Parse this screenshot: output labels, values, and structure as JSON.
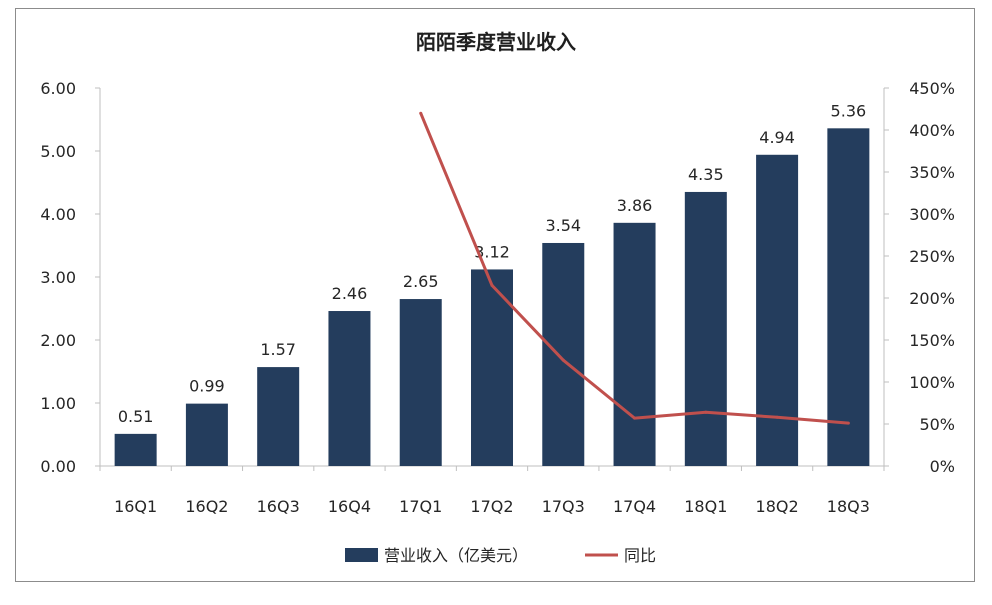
{
  "chart_data": {
    "type": "bar",
    "title": "陌陌季度营业收入",
    "categories": [
      "16Q1",
      "16Q2",
      "16Q3",
      "16Q4",
      "17Q1",
      "17Q2",
      "17Q3",
      "17Q4",
      "18Q1",
      "18Q2",
      "18Q3"
    ],
    "series": [
      {
        "name": "营业收入（亿美元）",
        "type": "bar",
        "axis": "left",
        "color": "#243d5d",
        "values": [
          0.51,
          0.99,
          1.57,
          2.46,
          2.65,
          3.12,
          3.54,
          3.86,
          4.35,
          4.94,
          5.36
        ],
        "labels": [
          "0.51",
          "0.99",
          "1.57",
          "2.46",
          "2.65",
          "3.12",
          "3.54",
          "3.86",
          "4.35",
          "4.94",
          "5.36"
        ]
      },
      {
        "name": "同比",
        "type": "line",
        "axis": "right",
        "color": "#c0504d",
        "values": [
          null,
          null,
          null,
          null,
          4.2,
          2.15,
          1.26,
          0.57,
          0.64,
          0.58,
          0.51
        ]
      }
    ],
    "y_left": {
      "min": 0,
      "max": 6,
      "step": 1,
      "tick_labels": [
        "0.00",
        "1.00",
        "2.00",
        "3.00",
        "4.00",
        "5.00",
        "6.00"
      ]
    },
    "y_right": {
      "min": 0,
      "max": 4.5,
      "step": 0.5,
      "tick_labels": [
        "0%",
        "50%",
        "100%",
        "150%",
        "200%",
        "250%",
        "300%",
        "350%",
        "400%",
        "450%"
      ]
    },
    "grid": false,
    "legend": "bottom"
  }
}
